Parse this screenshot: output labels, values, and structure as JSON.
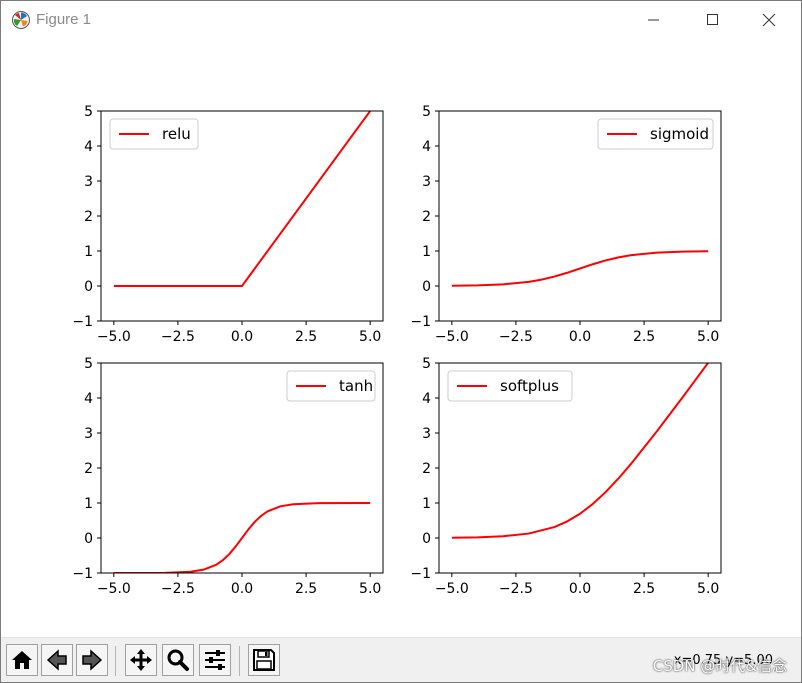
{
  "window": {
    "title": "Figure 1"
  },
  "titlebar_icons": {
    "app": "matplotlib-icon",
    "minimize": "minimize-icon",
    "maximize": "maximize-icon",
    "close": "close-icon"
  },
  "toolbar": {
    "buttons": [
      {
        "name": "home-button",
        "icon": "home-icon"
      },
      {
        "name": "back-button",
        "icon": "back-arrow-icon"
      },
      {
        "name": "forward-button",
        "icon": "forward-arrow-icon"
      },
      {
        "name": "pan-button",
        "icon": "move-icon"
      },
      {
        "name": "zoom-button",
        "icon": "magnifier-icon"
      },
      {
        "name": "configure-subplots-button",
        "icon": "sliders-icon"
      },
      {
        "name": "save-button",
        "icon": "floppy-disk-icon"
      }
    ],
    "coords": "x=0.75 y=5.00",
    "watermark": "CSDN @时代&信念"
  },
  "line_color": "#ff0000",
  "chart_data": [
    {
      "type": "line",
      "legend": "relu",
      "legend_loc": "upper-left",
      "xlim": [
        -5.5,
        5.5
      ],
      "ylim": [
        -1,
        5
      ],
      "xticks": [
        -5.0,
        -2.5,
        0.0,
        2.5,
        5.0
      ],
      "xtick_labels": [
        "−5.0",
        "−2.5",
        "0.0",
        "2.5",
        "5.0"
      ],
      "yticks": [
        -1,
        0,
        1,
        2,
        3,
        4,
        5
      ],
      "ytick_labels": [
        "−1",
        "0",
        "1",
        "2",
        "3",
        "4",
        "5"
      ],
      "x": [
        -5,
        0,
        5
      ],
      "y": [
        0,
        0,
        5
      ]
    },
    {
      "type": "line",
      "legend": "sigmoid",
      "legend_loc": "upper-right",
      "xlim": [
        -5.5,
        5.5
      ],
      "ylim": [
        -1,
        5
      ],
      "xticks": [
        -5.0,
        -2.5,
        0.0,
        2.5,
        5.0
      ],
      "xtick_labels": [
        "−5.0",
        "−2.5",
        "0.0",
        "2.5",
        "5.0"
      ],
      "yticks": [
        -1,
        0,
        1,
        2,
        3,
        4,
        5
      ],
      "ytick_labels": [
        "−1",
        "0",
        "1",
        "2",
        "3",
        "4",
        "5"
      ],
      "x": [
        -5,
        -4,
        -3,
        -2,
        -1.5,
        -1,
        -0.5,
        0,
        0.5,
        1,
        1.5,
        2,
        3,
        4,
        5
      ],
      "y": [
        0.007,
        0.018,
        0.047,
        0.119,
        0.182,
        0.269,
        0.378,
        0.5,
        0.622,
        0.731,
        0.818,
        0.881,
        0.953,
        0.982,
        0.993
      ]
    },
    {
      "type": "line",
      "legend": "tanh",
      "legend_loc": "upper-right",
      "xlim": [
        -5.5,
        5.5
      ],
      "ylim": [
        -1,
        5
      ],
      "xticks": [
        -5.0,
        -2.5,
        0.0,
        2.5,
        5.0
      ],
      "xtick_labels": [
        "−5.0",
        "−2.5",
        "0.0",
        "2.5",
        "5.0"
      ],
      "yticks": [
        -1,
        0,
        1,
        2,
        3,
        4,
        5
      ],
      "ytick_labels": [
        "−1",
        "0",
        "1",
        "2",
        "3",
        "4",
        "5"
      ],
      "x": [
        -5,
        -3,
        -2,
        -1.5,
        -1,
        -0.75,
        -0.5,
        -0.25,
        0,
        0.25,
        0.5,
        0.75,
        1,
        1.5,
        2,
        3,
        5
      ],
      "y": [
        -1.0,
        -0.995,
        -0.964,
        -0.905,
        -0.762,
        -0.635,
        -0.462,
        -0.245,
        0,
        0.245,
        0.462,
        0.635,
        0.762,
        0.905,
        0.964,
        0.995,
        1.0
      ]
    },
    {
      "type": "line",
      "legend": "softplus",
      "legend_loc": "upper-left",
      "xlim": [
        -5.5,
        5.5
      ],
      "ylim": [
        -1,
        5
      ],
      "xticks": [
        -5.0,
        -2.5,
        0.0,
        2.5,
        5.0
      ],
      "xtick_labels": [
        "−5.0",
        "−2.5",
        "0.0",
        "2.5",
        "5.0"
      ],
      "yticks": [
        -1,
        0,
        1,
        2,
        3,
        4,
        5
      ],
      "ytick_labels": [
        "−1",
        "0",
        "1",
        "2",
        "3",
        "4",
        "5"
      ],
      "x": [
        -5,
        -4,
        -3,
        -2,
        -1,
        -0.5,
        0,
        0.5,
        1,
        1.5,
        2,
        3,
        4,
        5
      ],
      "y": [
        0.007,
        0.018,
        0.049,
        0.127,
        0.313,
        0.474,
        0.693,
        0.974,
        1.313,
        1.701,
        2.127,
        3.049,
        4.018,
        5.007
      ]
    }
  ]
}
